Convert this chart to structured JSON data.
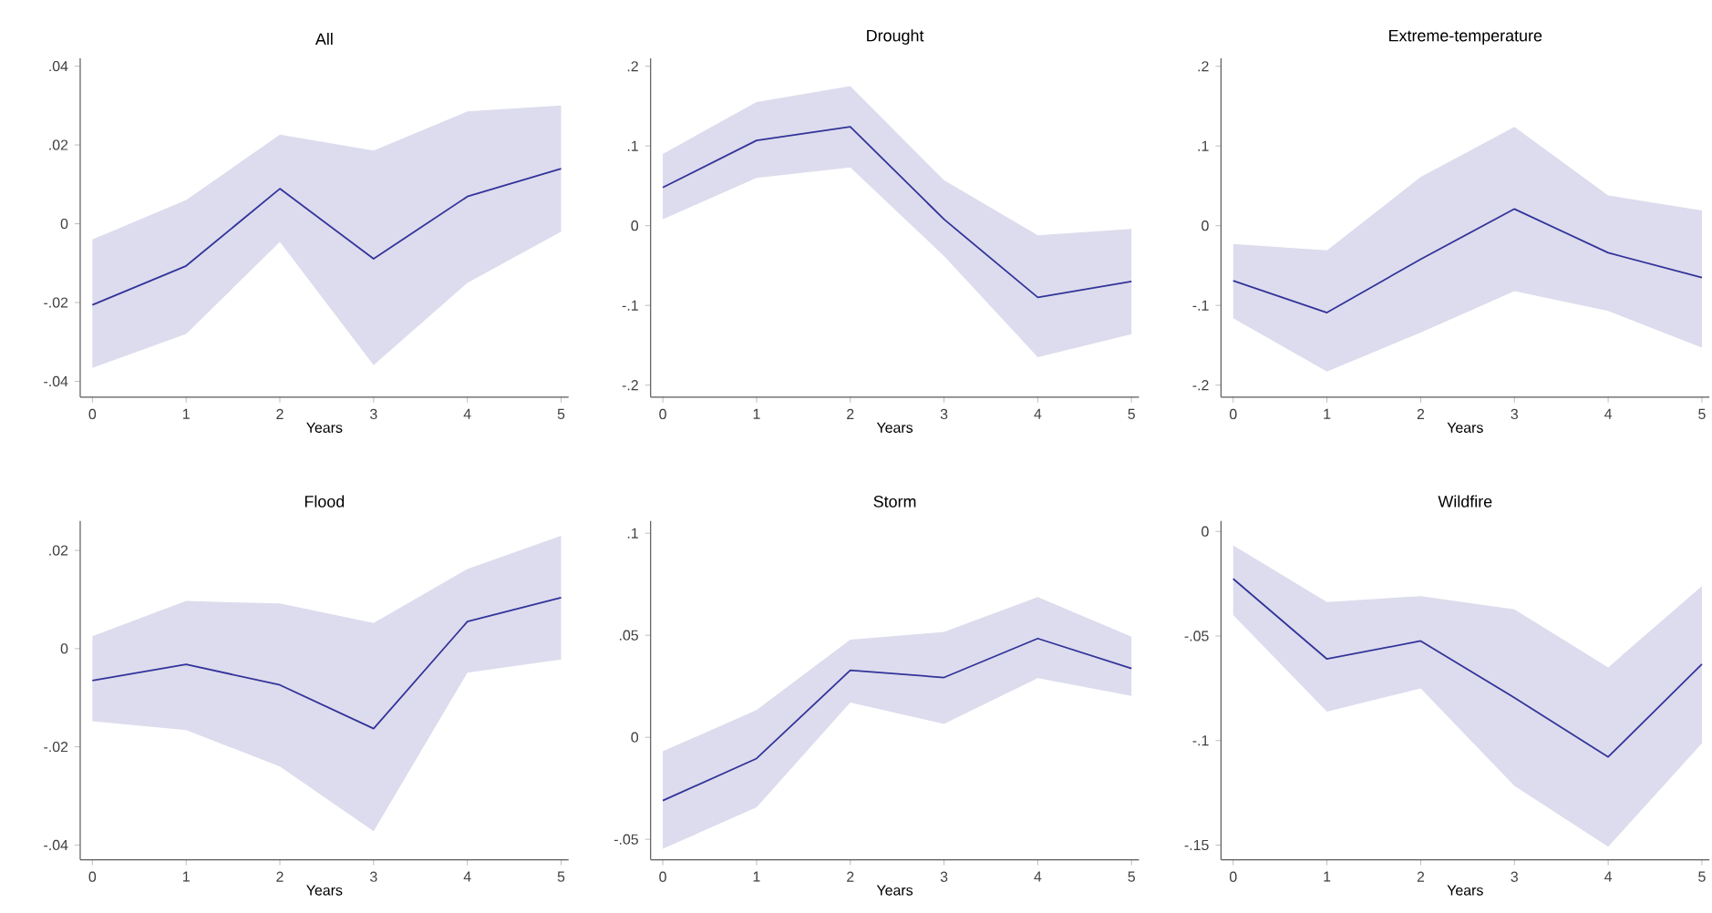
{
  "chart_data": [
    {
      "type": "line",
      "title": "All",
      "xlabel": "Years",
      "x": [
        0,
        1,
        2,
        3,
        4,
        5
      ],
      "xlim": [
        -0.13,
        5.08
      ],
      "xticks": [
        0,
        1,
        2,
        3,
        4,
        5
      ],
      "ylim": [
        -0.044,
        0.042
      ],
      "yticks": [
        {
          "value": -0.04,
          "label": "-.04"
        },
        {
          "value": -0.02,
          "label": "-.02"
        },
        0,
        {
          "value": 0.02,
          "label": ".02"
        },
        {
          "value": 0.04,
          "label": ".04"
        }
      ],
      "series": [
        {
          "color": "#33339a",
          "values": [
            -0.0206,
            -0.0107,
            0.0089,
            -0.0089,
            0.0069,
            0.014
          ],
          "lower": [
            -0.0366,
            -0.028,
            -0.0046,
            -0.0359,
            -0.015,
            -0.002
          ],
          "upper": [
            -0.004,
            0.006,
            0.0226,
            0.0186,
            0.0285,
            0.03
          ]
        }
      ]
    },
    {
      "type": "line",
      "title": "Drought",
      "xlabel": "Years",
      "x": [
        0,
        1,
        2,
        3,
        4,
        5
      ],
      "xlim": [
        -0.13,
        5.08
      ],
      "xticks": [
        0,
        1,
        2,
        3,
        4,
        5
      ],
      "ylim": [
        -0.215,
        0.21
      ],
      "yticks": [
        {
          "value": -0.2,
          "label": "-.2"
        },
        {
          "value": -0.1,
          "label": "-.1"
        },
        0,
        {
          "value": 0.1,
          "label": ".1"
        },
        {
          "value": 0.2,
          "label": ".2"
        }
      ],
      "series": [
        {
          "color": "#33339a",
          "values": [
            0.048,
            0.107,
            0.124,
            0.008,
            -0.09,
            -0.07
          ],
          "lower": [
            0.008,
            0.06,
            0.073,
            -0.038,
            -0.165,
            -0.136
          ],
          "upper": [
            0.09,
            0.155,
            0.175,
            0.057,
            -0.012,
            -0.004
          ]
        }
      ]
    },
    {
      "type": "line",
      "title": "Extreme-temperature",
      "xlabel": "Years",
      "x": [
        0,
        1,
        2,
        3,
        4,
        5
      ],
      "xlim": [
        -0.13,
        5.08
      ],
      "xticks": [
        0,
        1,
        2,
        3,
        4,
        5
      ],
      "ylim": [
        -0.215,
        0.21
      ],
      "yticks": [
        {
          "value": -0.2,
          "label": "-.2"
        },
        {
          "value": -0.1,
          "label": "-.1"
        },
        0,
        {
          "value": 0.1,
          "label": ".1"
        },
        {
          "value": 0.2,
          "label": ".2"
        }
      ],
      "series": [
        {
          "color": "#33339a",
          "values": [
            -0.069,
            -0.109,
            -0.042,
            0.021,
            -0.034,
            -0.065
          ],
          "lower": [
            -0.116,
            -0.183,
            -0.134,
            -0.082,
            -0.107,
            -0.153
          ],
          "upper": [
            -0.023,
            -0.031,
            0.061,
            0.124,
            0.038,
            0.019
          ]
        }
      ]
    },
    {
      "type": "line",
      "title": "Flood",
      "xlabel": "Years",
      "x": [
        0,
        1,
        2,
        3,
        4,
        5
      ],
      "xlim": [
        -0.13,
        5.08
      ],
      "xticks": [
        0,
        1,
        2,
        3,
        4,
        5
      ],
      "ylim": [
        -0.043,
        0.026
      ],
      "yticks": [
        {
          "value": -0.04,
          "label": "-.04"
        },
        {
          "value": -0.02,
          "label": "-.02"
        },
        0,
        {
          "value": 0.02,
          "label": ".02"
        }
      ],
      "series": [
        {
          "color": "#33339a",
          "values": [
            -0.0065,
            -0.0032,
            -0.0074,
            -0.0163,
            0.0055,
            0.0104
          ],
          "lower": [
            -0.0148,
            -0.0166,
            -0.024,
            -0.0372,
            -0.0049,
            -0.0022
          ],
          "upper": [
            0.0025,
            0.0097,
            0.0092,
            0.0052,
            0.0162,
            0.023
          ]
        }
      ]
    },
    {
      "type": "line",
      "title": "Storm",
      "xlabel": "Years",
      "x": [
        0,
        1,
        2,
        3,
        4,
        5
      ],
      "xlim": [
        -0.13,
        5.08
      ],
      "xticks": [
        0,
        1,
        2,
        3,
        4,
        5
      ],
      "ylim": [
        -0.06,
        0.106
      ],
      "yticks": [
        {
          "value": -0.05,
          "label": "-.05"
        },
        0,
        {
          "value": 0.05,
          "label": ".05"
        },
        {
          "value": 0.1,
          "label": ".1"
        }
      ],
      "series": [
        {
          "color": "#33339a",
          "values": [
            -0.031,
            -0.0104,
            0.0328,
            0.0293,
            0.0484,
            0.0337
          ],
          "lower": [
            -0.0546,
            -0.0343,
            0.017,
            0.0066,
            0.029,
            0.0203
          ],
          "upper": [
            -0.0069,
            0.0134,
            0.0478,
            0.0516,
            0.0687,
            0.0493
          ]
        }
      ]
    },
    {
      "type": "line",
      "title": "Wildfire",
      "xlabel": "Years",
      "x": [
        0,
        1,
        2,
        3,
        4,
        5
      ],
      "xlim": [
        -0.13,
        5.08
      ],
      "xticks": [
        0,
        1,
        2,
        3,
        4,
        5
      ],
      "ylim": [
        -0.157,
        0.005
      ],
      "yticks": [
        {
          "value": -0.15,
          "label": "-.15"
        },
        {
          "value": -0.1,
          "label": "-.1"
        },
        {
          "value": -0.05,
          "label": "-.05"
        },
        0
      ],
      "series": [
        {
          "color": "#33339a",
          "values": [
            -0.0227,
            -0.061,
            -0.0524,
            -0.0795,
            -0.1078,
            -0.0635
          ],
          "lower": [
            -0.04,
            -0.0862,
            -0.0751,
            -0.1217,
            -0.1508,
            -0.1013
          ],
          "upper": [
            -0.0067,
            -0.0338,
            -0.0309,
            -0.0373,
            -0.065,
            -0.0262
          ]
        }
      ]
    }
  ]
}
